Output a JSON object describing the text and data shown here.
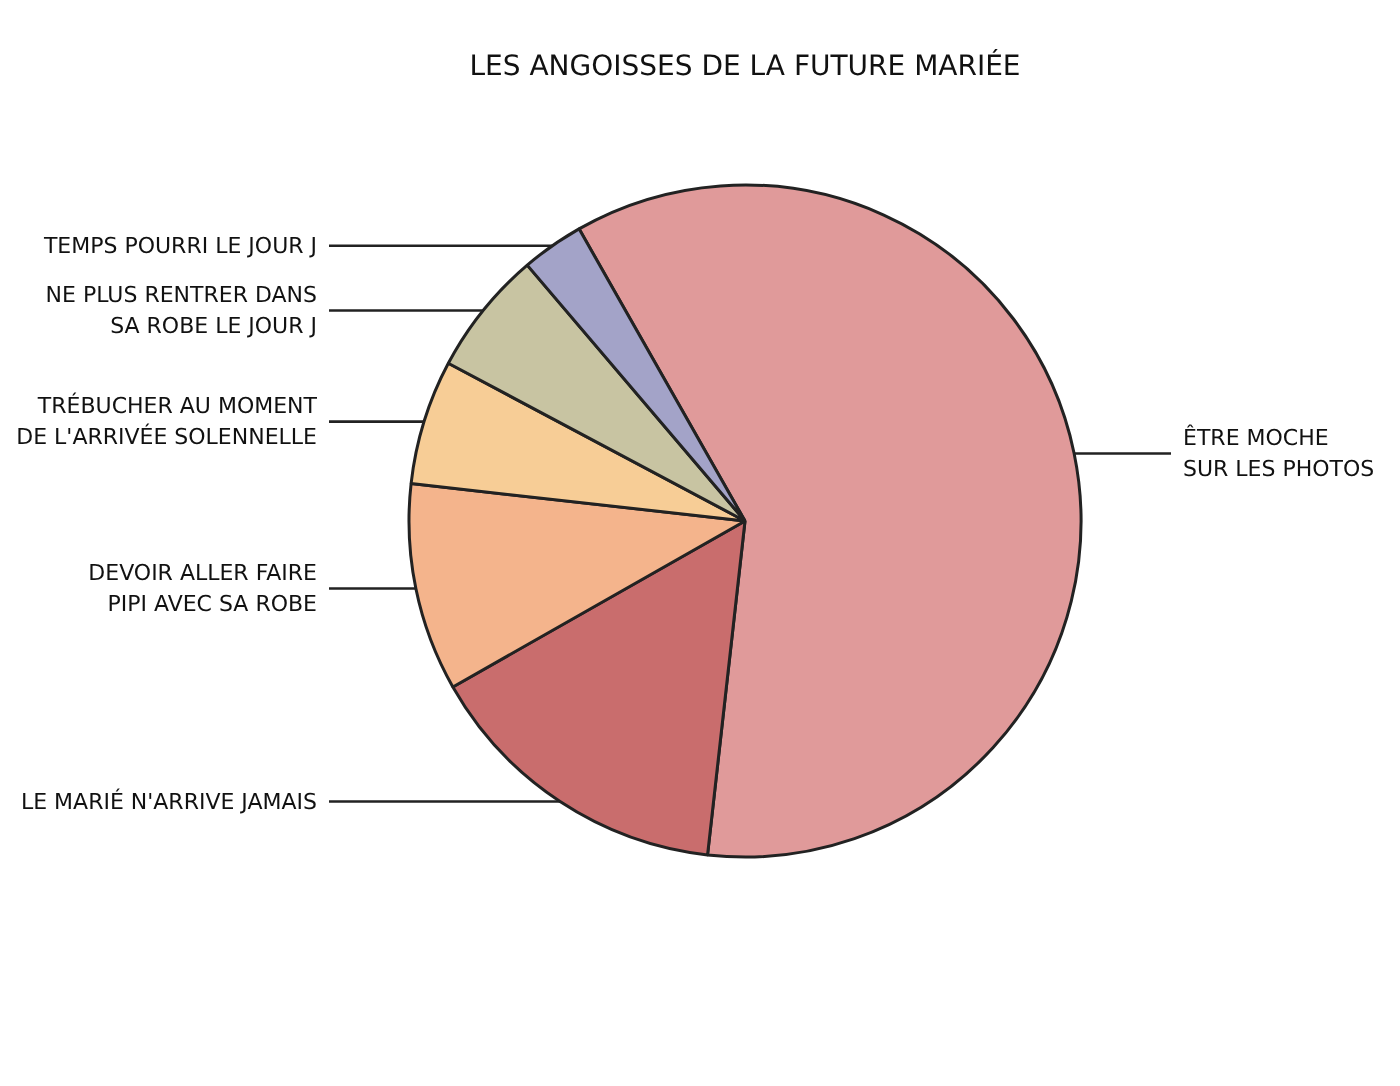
{
  "chart_data": {
    "type": "pie",
    "title": "LES ANGOISSES DE LA FUTURE MARIÉE",
    "categories": [
      "ÊTRE MOCHE\nSUR LES PHOTOS",
      "LE MARIÉ N'ARRIVE JAMAIS",
      "DEVOIR ALLER FAIRE\nPIPI AVEC SA ROBE",
      "TRÉBUCHER AU MOMENT\nDE L'ARRIVÉE SOLENNELLE",
      "NE PLUS RENTRER DANS\nSA ROBE LE JOUR J",
      "TEMPS POURRI LE JOUR J"
    ],
    "values": [
      60,
      15,
      10,
      6,
      6,
      3
    ],
    "colors": [
      "#e09a9a",
      "#c96d6d",
      "#f4b48c",
      "#f7cd96",
      "#c8c4a2",
      "#a3a3c8"
    ]
  }
}
